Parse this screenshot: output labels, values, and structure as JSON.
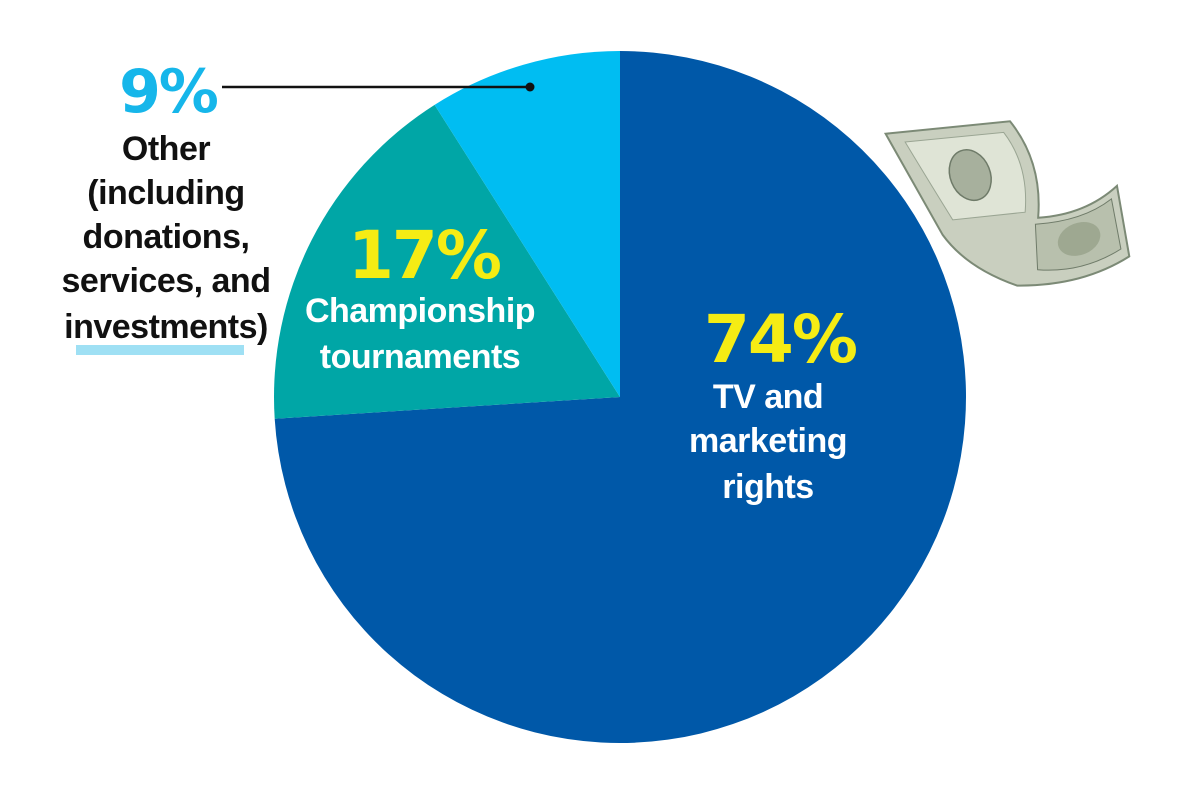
{
  "chart_data": {
    "type": "pie",
    "slices": [
      {
        "key": "tv",
        "value": 74,
        "pct_label": "74%",
        "label_lines": [
          "TV and",
          "marketing",
          "rights"
        ],
        "color": "#0058a8"
      },
      {
        "key": "championship",
        "value": 17,
        "pct_label": "17%",
        "label_lines": [
          "Championship",
          "tournaments"
        ],
        "color": "#00a6a6"
      },
      {
        "key": "other",
        "value": 9,
        "pct_label": "9%",
        "label_lines": [
          "Other",
          "(including",
          "donations,",
          "services, and",
          "investments)"
        ],
        "color": "#00bdf2"
      }
    ],
    "start_angle_deg": 0,
    "direction": "clockwise",
    "label_colors": {
      "percent": "#f5ec14",
      "other_percent": "#16b6ea",
      "text": "#ffffff",
      "other_text": "#111111",
      "highlight": "#9fe0f4"
    }
  },
  "decoration": {
    "icon": "dollar-bill-icon"
  }
}
